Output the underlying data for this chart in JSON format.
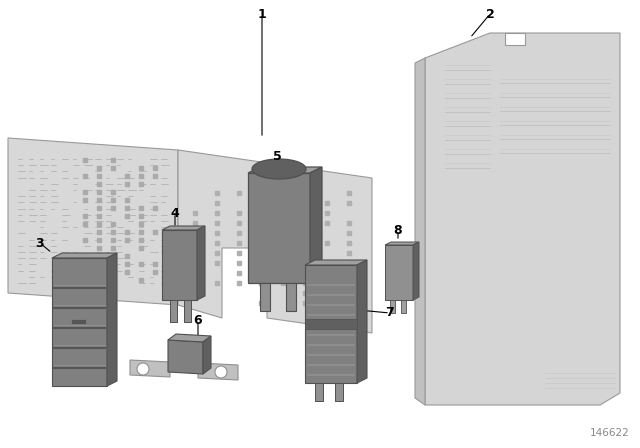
{
  "bg_color": "#ffffff",
  "card_color": "#d8d8d8",
  "card_edge": "#999999",
  "part_front": "#808080",
  "part_top": "#a0a0a0",
  "part_side": "#606060",
  "part_edge": "#505050",
  "metal_color": "#c0c0c0",
  "metal_edge": "#909090",
  "text_color": "#cccccc",
  "label_color": "#000000",
  "diagram_id": "146622",
  "figsize": [
    6.4,
    4.48
  ],
  "dpi": 100
}
